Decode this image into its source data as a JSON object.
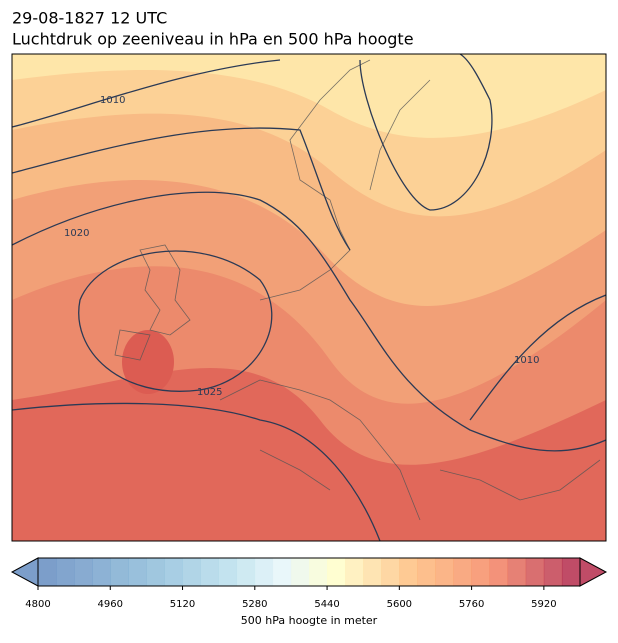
{
  "header": {
    "title": "29-08-1827 12 UTC",
    "subtitle": "Luchtdruk op zeeniveau in hPa en 500 hPa hoogte"
  },
  "map": {
    "isobar_labels": [
      1010,
      1020,
      1025,
      1010
    ]
  },
  "colorbar": {
    "label": "500 hPa hoogte in meter",
    "lim": [
      4800,
      6000
    ],
    "levels": [
      4800,
      4840,
      4880,
      4920,
      4960,
      5000,
      5040,
      5080,
      5120,
      5160,
      5200,
      5240,
      5280,
      5320,
      5360,
      5400,
      5440,
      5480,
      5520,
      5560,
      5600,
      5640,
      5680,
      5720,
      5760,
      5800,
      5840,
      5880,
      5920,
      5960,
      6000
    ],
    "ticks": [
      4800,
      4960,
      5120,
      5280,
      5440,
      5600,
      5760,
      5920
    ]
  }
}
